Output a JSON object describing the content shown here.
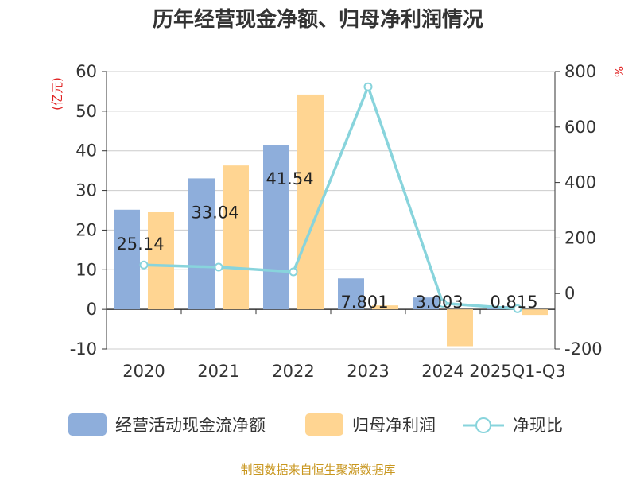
{
  "title": "历年经营现金净额、归母净利润情况",
  "source": "制图数据来自恒生聚源数据库",
  "colors": {
    "cashflow": "#8eaedb",
    "netprofit": "#ffd592",
    "ratio": "#88d4dc",
    "grid": "#cccccc",
    "axis": "#333333",
    "unit": "#e02020",
    "source": "#c8961e"
  },
  "chart_data": {
    "type": "bar",
    "title": "历年经营现金净额、归母净利润情况",
    "categories": [
      "2020",
      "2021",
      "2022",
      "2023",
      "2024",
      "2025Q1-Q3"
    ],
    "left_axis": {
      "unit": "(亿元)",
      "ylim": [
        -10,
        60
      ],
      "ticks": [
        -10,
        0,
        10,
        20,
        30,
        40,
        50,
        60
      ]
    },
    "right_axis": {
      "unit": "%",
      "ylim": [
        -200,
        800
      ],
      "ticks": [
        -200,
        0,
        200,
        400,
        600,
        800
      ]
    },
    "series": [
      {
        "name": "经营活动现金流净额",
        "type": "bar",
        "axis": "left",
        "values": [
          25.14,
          33.04,
          41.54,
          7.801,
          3.003,
          0.815
        ],
        "labels": [
          "25.14",
          "33.04",
          "41.54",
          "7.801",
          "3.003",
          "0.815"
        ]
      },
      {
        "name": "归母净利润",
        "type": "bar",
        "axis": "left",
        "values": [
          24.5,
          36.3,
          54.2,
          1.0,
          -9.3,
          -1.4
        ]
      },
      {
        "name": "净现比",
        "type": "line",
        "axis": "right",
        "values": [
          103,
          95,
          78,
          745,
          -35,
          -55
        ]
      }
    ],
    "grid": true,
    "legend_position": "bottom"
  }
}
